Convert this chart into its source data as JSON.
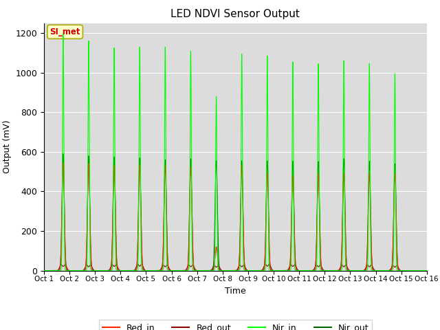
{
  "title": "LED NDVI Sensor Output",
  "xlabel": "Time",
  "ylabel": "Output (mV)",
  "ylim": [
    0,
    1250
  ],
  "yticks": [
    0,
    200,
    400,
    600,
    800,
    1000,
    1200
  ],
  "x_labels": [
    "Oct 1",
    "Oct 2",
    "Oct 3",
    "Oct 4",
    "Oct 5",
    "Oct 6",
    "Oct 7",
    "Oct 8",
    "Oct 9",
    "Oct 10",
    "Oct 11",
    "Oct 12",
    "Oct 13",
    "Oct 14",
    "Oct 15",
    "Oct 16"
  ],
  "annotation_text": "SI_met",
  "annotation_color": "#cc0000",
  "annotation_bg": "#ffffcc",
  "bg_color": "#dcdcdc",
  "legend_entries": [
    "Red_in",
    "Red_out",
    "Nir_in",
    "Nir_out"
  ],
  "legend_colors": [
    "#ff2200",
    "#8b0000",
    "#00ff00",
    "#006400"
  ],
  "line_colors": {
    "red_in": "#ff2200",
    "red_out": "#8b0000",
    "nir_in": "#00ff00",
    "nir_out": "#006400"
  },
  "nir_in_peaks": [
    1195,
    1160,
    1125,
    1130,
    1130,
    1110,
    880,
    1095,
    1085,
    1055,
    1045,
    1060,
    1045,
    995
  ],
  "nir_out_peaks": [
    590,
    580,
    575,
    570,
    560,
    565,
    555,
    555,
    555,
    553,
    552,
    565,
    552,
    540
  ],
  "red_in_peaks": [
    545,
    540,
    530,
    535,
    530,
    525,
    120,
    530,
    495,
    480,
    490,
    490,
    490,
    490
  ],
  "red_out_peaks": [
    30,
    28,
    30,
    32,
    28,
    28,
    25,
    28,
    32,
    30,
    28,
    28,
    28,
    25
  ],
  "num_days": 15
}
